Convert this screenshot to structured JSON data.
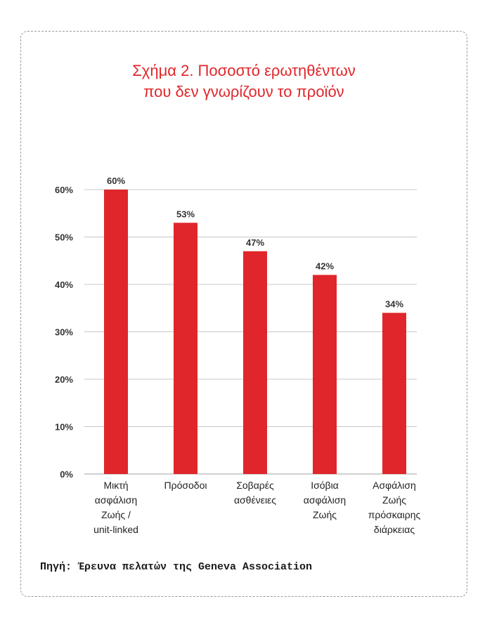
{
  "title": {
    "line1": "Σχήμα 2. Ποσοστό ερωτηθέντων",
    "line2": "που δεν γνωρίζουν το προϊόν"
  },
  "source": "Πηγή: Έρευνα πελατών της Geneva Association",
  "colors": {
    "bar": "#e0262a",
    "title": "#e0262a",
    "grid": "#c8c8c8",
    "text": "#333333"
  },
  "chart_data": {
    "type": "bar",
    "title": "Σχήμα 2. Ποσοστό ερωτηθέντων που δεν γνωρίζουν το προϊόν",
    "categories": [
      [
        "Μικτή",
        "ασφάλιση",
        "Ζωής /",
        "unit-linked"
      ],
      [
        "Πρόσοδοι"
      ],
      [
        "Σοβαρές",
        "ασθένειες"
      ],
      [
        "Ισόβια",
        "ασφάλιση",
        "Ζωής"
      ],
      [
        "Ασφάλιση",
        "Ζωής",
        "πρόσκαιρης",
        "διάρκειας"
      ]
    ],
    "values": [
      60,
      53,
      47,
      42,
      34
    ],
    "data_labels": [
      "60%",
      "53%",
      "47%",
      "42%",
      "34%"
    ],
    "yticks": [
      "0%",
      "10%",
      "20%",
      "30%",
      "40%",
      "50%",
      "60%"
    ],
    "ylim": [
      0,
      60
    ],
    "grid": true,
    "legend": "none",
    "xlabel": "",
    "ylabel": ""
  }
}
